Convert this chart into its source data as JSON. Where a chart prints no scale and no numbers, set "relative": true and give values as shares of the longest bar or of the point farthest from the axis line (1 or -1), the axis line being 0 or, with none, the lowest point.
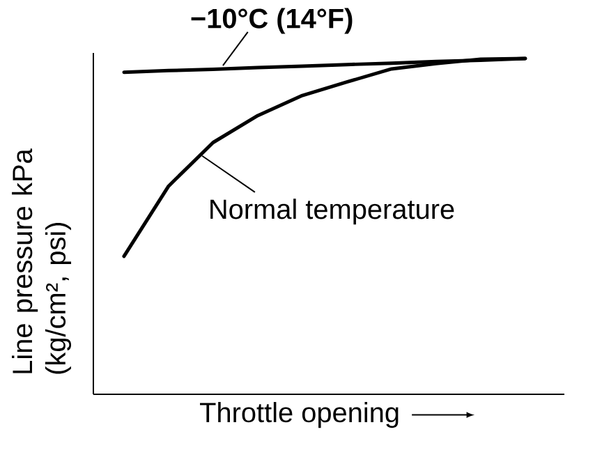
{
  "chart_data": {
    "type": "line",
    "relative": true,
    "xlabel": "Throttle opening",
    "ylabel": "Line pressure kPa (kg/cm², psi)",
    "categories": [
      null,
      null,
      null,
      null,
      null,
      null,
      null,
      null,
      null,
      null
    ],
    "series": [
      {
        "name": "−10°C (14°F)",
        "color": "#000000",
        "values": [
          0.959,
          0.964,
          0.968,
          0.973,
          0.977,
          0.982,
          0.986,
          0.991,
          0.995,
          1.0
        ]
      },
      {
        "name": "Normal temperature",
        "color": "#000000",
        "values": [
          0.411,
          0.62,
          0.75,
          0.83,
          0.89,
          0.93,
          0.969,
          0.985,
          0.998,
          1.0
        ]
      }
    ]
  }
}
